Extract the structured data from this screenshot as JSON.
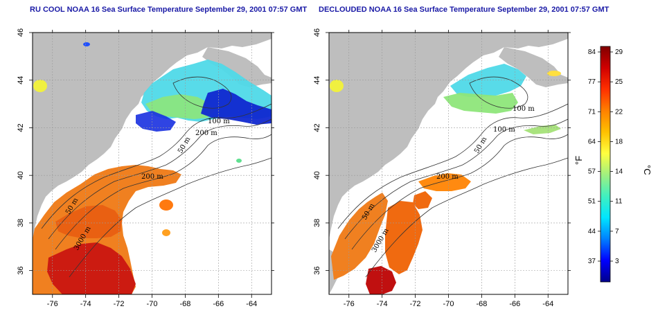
{
  "titles": {
    "left": "RU COOL NOAA 16 Sea Surface Temperature September 29, 2001 07:57 GMT",
    "right": "DECLOUDED NOAA 16 Sea Surface Temperature September 29, 2001 07:57 GMT"
  },
  "map": {
    "lon_range": [
      -77.2,
      -62.8
    ],
    "lat_range": [
      35,
      46
    ],
    "x_ticks": [
      -76,
      -74,
      -72,
      -70,
      -68,
      -66,
      -64
    ],
    "x_tick_labels": [
      "-76",
      "-74",
      "-72",
      "-70",
      "-68",
      "-66",
      "-64"
    ],
    "y_ticks": [
      36,
      38,
      40,
      42,
      44,
      46
    ],
    "y_tick_labels": [
      "36",
      "38",
      "40",
      "42",
      "44",
      "46"
    ],
    "grid": true,
    "land_color": "#bebebe",
    "cloud_color": "#ffffff"
  },
  "contour_labels": {
    "left": [
      "200 m",
      "100 m",
      "50 m",
      "200 m",
      "50 m",
      "3000 m"
    ],
    "right": [
      "100 m",
      "100 m",
      "50 m",
      "200 m",
      "50 m",
      "3000 m"
    ]
  },
  "colorbar": {
    "fahrenheit_label": "°F",
    "celsius_label": "°C",
    "fahrenheit_ticks": [
      "84",
      "77",
      "71",
      "64",
      "57",
      "51",
      "44",
      "37"
    ],
    "celsius_ticks": [
      "29",
      "25",
      "22",
      "18",
      "14",
      "11",
      "7",
      "3"
    ],
    "colors": [
      "#00008b",
      "#0000ff",
      "#0080ff",
      "#00e5ff",
      "#40f0c0",
      "#a0f080",
      "#ffff40",
      "#ffc000",
      "#ff8000",
      "#ff3000",
      "#d00000",
      "#800000"
    ]
  }
}
